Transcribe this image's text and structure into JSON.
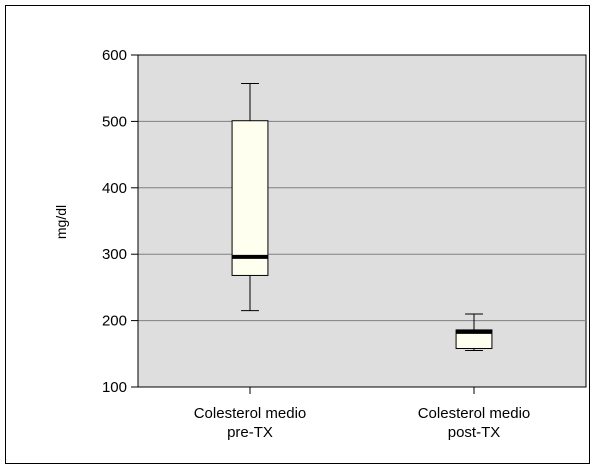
{
  "chart_data": {
    "type": "box",
    "ylabel": "mg/dl",
    "ylim": [
      100,
      600
    ],
    "yticks": [
      100,
      200,
      300,
      400,
      500,
      600
    ],
    "grid": true,
    "categories": [
      {
        "lines": [
          "Colesterol medio",
          "pre-TX"
        ]
      },
      {
        "lines": [
          "Colesterol medio",
          "post-TX"
        ]
      }
    ],
    "boxes": [
      {
        "whisker_low": 215,
        "q1": 268,
        "median": 296,
        "q3": 501,
        "whisker_high": 557
      },
      {
        "whisker_low": 155,
        "q1": 158,
        "median": 183,
        "q3": 186,
        "whisker_high": 210
      }
    ],
    "colors": {
      "plot_background": "#dedede",
      "box_fill": "#fffff0",
      "grid": "#808080",
      "frame": "#000000"
    }
  }
}
